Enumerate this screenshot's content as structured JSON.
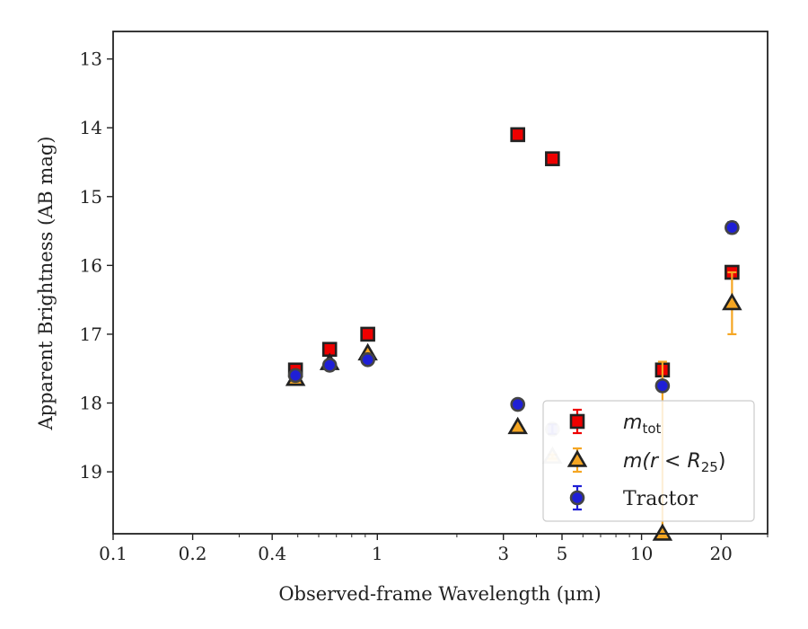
{
  "chart_data": {
    "type": "scatter",
    "xlabel": "Observed-frame Wavelength (μm)",
    "ylabel": "Apparent Brightness (AB mag)",
    "x_scale": "log",
    "xlim": [
      0.1,
      30
    ],
    "ylim": [
      19.9,
      12.6
    ],
    "y_inverted": true,
    "x_ticks": [
      0.1,
      0.2,
      0.4,
      1,
      3,
      5,
      10,
      20
    ],
    "x_tick_labels": [
      "0.1",
      "0.2",
      "0.4",
      "1",
      "3",
      "5",
      "10",
      "20"
    ],
    "y_ticks": [
      13,
      14,
      15,
      16,
      17,
      18,
      19
    ],
    "y_tick_labels": [
      "13",
      "14",
      "15",
      "16",
      "17",
      "18",
      "19"
    ],
    "grid": false,
    "legend_position": "lower-right",
    "series": [
      {
        "name": "m_tot",
        "marker": "square",
        "color": "#ee0000",
        "edge": "#222222",
        "points": [
          {
            "x": 0.49,
            "y": 17.52,
            "err": 0.03
          },
          {
            "x": 0.66,
            "y": 17.22,
            "err": 0.03
          },
          {
            "x": 0.92,
            "y": 17.0,
            "err": 0.03
          },
          {
            "x": 3.4,
            "y": 14.1,
            "err": 0.03
          },
          {
            "x": 4.6,
            "y": 14.45,
            "err": 0.03
          },
          {
            "x": 12.0,
            "y": 17.52,
            "err": 0.03
          },
          {
            "x": 22.0,
            "y": 16.1,
            "err": 0.05
          }
        ]
      },
      {
        "name": "m(r < R_25)",
        "marker": "triangle",
        "color": "#f5a623",
        "edge": "#222222",
        "points": [
          {
            "x": 0.49,
            "y": 17.65,
            "err": 0.03
          },
          {
            "x": 0.66,
            "y": 17.42,
            "err": 0.03
          },
          {
            "x": 0.92,
            "y": 17.28,
            "err": 0.03
          },
          {
            "x": 3.4,
            "y": 18.35,
            "err": 0.03
          },
          {
            "x": 4.6,
            "y": 18.78,
            "err": 0.03,
            "faded": true
          },
          {
            "x": 12.0,
            "y": 19.9,
            "err": 2.5
          },
          {
            "x": 22.0,
            "y": 16.55,
            "err": 0.45
          }
        ]
      },
      {
        "name": "Tractor",
        "marker": "circle",
        "color": "#1f1fd6",
        "edge": "#444444",
        "points": [
          {
            "x": 0.49,
            "y": 17.6,
            "err": 0.05
          },
          {
            "x": 0.66,
            "y": 17.45,
            "err": 0.06
          },
          {
            "x": 0.92,
            "y": 17.37,
            "err": 0.07
          },
          {
            "x": 3.4,
            "y": 18.02,
            "err": 0.07
          },
          {
            "x": 4.6,
            "y": 18.38,
            "err": 0.07,
            "faded": true
          },
          {
            "x": 12.0,
            "y": 17.75,
            "err": 0.07
          },
          {
            "x": 22.0,
            "y": 15.45,
            "err": 0.08
          }
        ]
      }
    ]
  },
  "legend": {
    "items": [
      {
        "symbol": "square",
        "main": "m",
        "sub": "tot",
        "rest": ""
      },
      {
        "symbol": "triangle",
        "main": "m(r < R",
        "sub": "25",
        "rest": ")"
      },
      {
        "symbol": "circle",
        "main": "Tractor",
        "sub": "",
        "rest": ""
      }
    ]
  }
}
